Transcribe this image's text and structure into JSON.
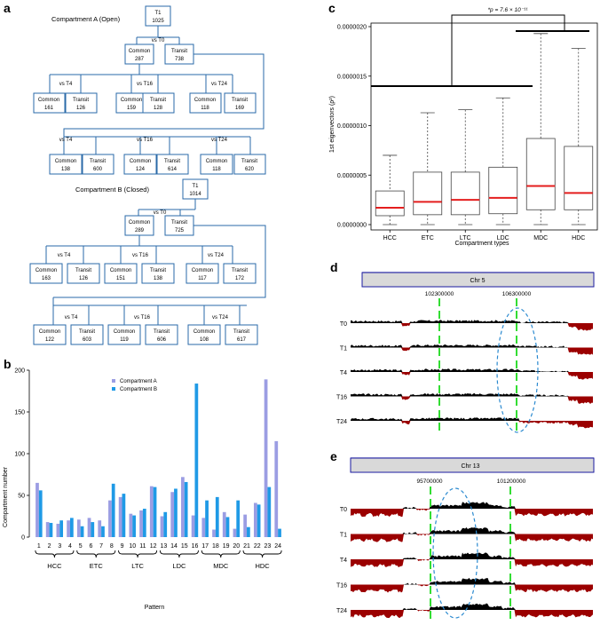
{
  "figure": {
    "labels": {
      "a": "a",
      "b": "b",
      "c": "c",
      "d": "d",
      "e": "e"
    }
  },
  "panel_a": {
    "trees": [
      {
        "title": "Compartment A (Open)",
        "root": {
          "name": "T1",
          "count": "1025"
        },
        "l1_label": "vs T0",
        "l1": [
          {
            "name": "Common",
            "count": "287"
          },
          {
            "name": "Transit",
            "count": "738"
          }
        ],
        "l2_labels": [
          "vs T4",
          "vs T16",
          "vs T24"
        ],
        "l2": [
          [
            {
              "name": "Common",
              "count": "161"
            },
            {
              "name": "Transit",
              "count": "126"
            }
          ],
          [
            {
              "name": "Common",
              "count": "159"
            },
            {
              "name": "Transit",
              "count": "128"
            }
          ],
          [
            {
              "name": "Common",
              "count": "118"
            },
            {
              "name": "Transit",
              "count": "169"
            }
          ]
        ],
        "l3_labels": [
          "vs T4",
          "vs T16",
          "vs T24"
        ],
        "l3": [
          [
            {
              "name": "Common",
              "count": "138"
            },
            {
              "name": "Transit",
              "count": "600"
            }
          ],
          [
            {
              "name": "Common",
              "count": "124"
            },
            {
              "name": "Transit",
              "count": "614"
            }
          ],
          [
            {
              "name": "Common",
              "count": "118"
            },
            {
              "name": "Transit",
              "count": "620"
            }
          ]
        ]
      },
      {
        "title": "Compartment B (Closed)",
        "root": {
          "name": "T1",
          "count": "1014"
        },
        "l1_label": "vs T0",
        "l1": [
          {
            "name": "Common",
            "count": "289"
          },
          {
            "name": "Transit",
            "count": "725"
          }
        ],
        "l2_labels": [
          "vs T4",
          "vs T16",
          "vs T24"
        ],
        "l2": [
          [
            {
              "name": "Common",
              "count": "163"
            },
            {
              "name": "Transit",
              "count": "126"
            }
          ],
          [
            {
              "name": "Common",
              "count": "151"
            },
            {
              "name": "Transit",
              "count": "138"
            }
          ],
          [
            {
              "name": "Common",
              "count": "117"
            },
            {
              "name": "Transit",
              "count": "172"
            }
          ]
        ],
        "l3_labels": [
          "vs T4",
          "vs T16",
          "vs T24"
        ],
        "l3": [
          [
            {
              "name": "Common",
              "count": "122"
            },
            {
              "name": "Transit",
              "count": "603"
            }
          ],
          [
            {
              "name": "Common",
              "count": "119"
            },
            {
              "name": "Transit",
              "count": "606"
            }
          ],
          [
            {
              "name": "Common",
              "count": "108"
            },
            {
              "name": "Transit",
              "count": "617"
            }
          ]
        ]
      }
    ]
  },
  "chart_data": [
    {
      "panel": "b",
      "type": "bar",
      "title": "",
      "xlabel": "Pattern",
      "ylabel": "Compartment number",
      "ylim": [
        0,
        200
      ],
      "yticks": [
        0,
        50,
        100,
        150,
        200
      ],
      "categories": [
        "1",
        "2",
        "3",
        "4",
        "5",
        "6",
        "7",
        "8",
        "9",
        "10",
        "11",
        "12",
        "13",
        "14",
        "15",
        "16",
        "17",
        "18",
        "19",
        "20",
        "21",
        "22",
        "23",
        "24"
      ],
      "series": [
        {
          "name": "Compartment A",
          "color": "#9b9de3",
          "values": [
            65,
            18,
            16,
            20,
            21,
            23,
            20,
            44,
            48,
            28,
            32,
            61,
            25,
            54,
            72,
            26,
            23,
            9,
            30,
            10,
            27,
            41,
            189,
            115
          ]
        },
        {
          "name": "Compartment B",
          "color": "#1f9ae6",
          "values": [
            56,
            17,
            20,
            23,
            13,
            18,
            13,
            64,
            52,
            26,
            34,
            60,
            30,
            58,
            66,
            184,
            44,
            48,
            24,
            44,
            12,
            39,
            60,
            10
          ]
        }
      ],
      "groups": [
        {
          "label": "HCC",
          "from": "1",
          "to": "4"
        },
        {
          "label": "ETC",
          "from": "5",
          "to": "8"
        },
        {
          "label": "LTC",
          "from": "9",
          "to": "12"
        },
        {
          "label": "LDC",
          "from": "13",
          "to": "16"
        },
        {
          "label": "MDC",
          "from": "17",
          "to": "20"
        },
        {
          "label": "HDC",
          "from": "21",
          "to": "24"
        }
      ],
      "legend": "top-left"
    },
    {
      "panel": "c",
      "type": "box",
      "title": "",
      "xlabel": "Compartment types",
      "ylabel": "1st eigenvectors (ρ²)",
      "ylim": [
        0,
        2e-06
      ],
      "yticks": [
        0,
        5e-07,
        1e-06,
        1.5e-06,
        2e-06
      ],
      "ytick_labels": [
        "0.0000000",
        "0.0000005",
        "0.0000010",
        "0.0000015",
        "0.0000020"
      ],
      "categories": [
        "HCC",
        "ETC",
        "LTC",
        "LDC",
        "MDC",
        "HDC"
      ],
      "boxes": [
        {
          "whisker_low": 0.0,
          "q1": 9e-08,
          "median": 1.7e-07,
          "q3": 3.4e-07,
          "whisker_high": 7e-07
        },
        {
          "whisker_low": 0.0,
          "q1": 1e-07,
          "median": 2.3e-07,
          "q3": 5.3e-07,
          "whisker_high": 1.13e-06
        },
        {
          "whisker_low": 0.0,
          "q1": 1e-07,
          "median": 2.5e-07,
          "q3": 5.3e-07,
          "whisker_high": 1.16e-06
        },
        {
          "whisker_low": 0.0,
          "q1": 1.1e-07,
          "median": 2.7e-07,
          "q3": 5.8e-07,
          "whisker_high": 1.28e-06
        },
        {
          "whisker_low": 0.0,
          "q1": 1.5e-07,
          "median": 3.9e-07,
          "q3": 8.7e-07,
          "whisker_high": 1.93e-06
        },
        {
          "whisker_low": 0.0,
          "q1": 1.5e-07,
          "median": 3.2e-07,
          "q3": 7.9e-07,
          "whisker_high": 1.78e-06
        }
      ],
      "annotation": "*p = 7.6 × 10⁻¹¹",
      "significance_groups": [
        [
          "HCC",
          "ETC",
          "LTC",
          "LDC"
        ],
        [
          "MDC",
          "HDC"
        ]
      ]
    },
    {
      "panel": "d",
      "type": "area",
      "title": "Chr 5",
      "markers": [
        "102300000",
        "106300000"
      ],
      "tracks": [
        "T0",
        "T1",
        "T4",
        "T16",
        "T24"
      ],
      "positive_color": "#000000",
      "negative_color": "#9b0000"
    },
    {
      "panel": "e",
      "type": "area",
      "title": "Chr 13",
      "markers": [
        "95700000",
        "101200000"
      ],
      "tracks": [
        "T0",
        "T1",
        "T4",
        "T16",
        "T24"
      ],
      "positive_color": "#000000",
      "negative_color": "#9b0000"
    }
  ]
}
